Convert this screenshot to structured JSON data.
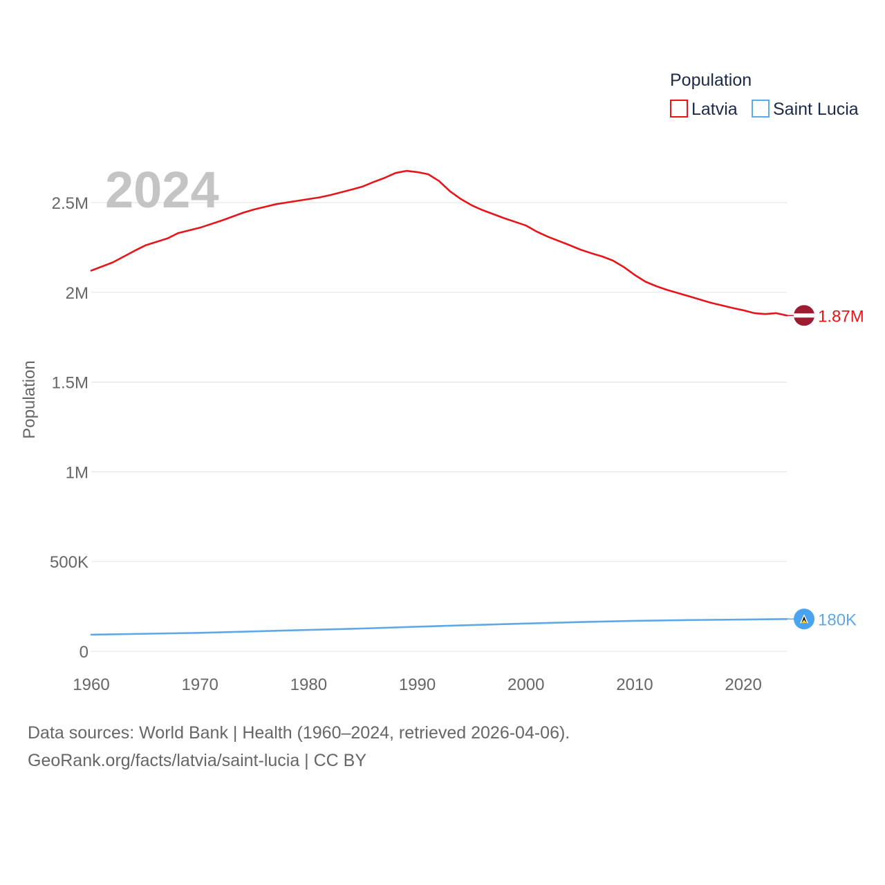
{
  "chart_data": {
    "type": "line",
    "title": "",
    "legend_title": "Population",
    "legend_position": "top-right",
    "year_label": "2024",
    "xlabel": "",
    "ylabel": "Population",
    "xlim": [
      1960,
      2024
    ],
    "ylim": [
      0,
      2500000
    ],
    "y_ticks": [
      {
        "value": 0,
        "label": "0"
      },
      {
        "value": 500000,
        "label": "500K"
      },
      {
        "value": 1000000,
        "label": "1M"
      },
      {
        "value": 1500000,
        "label": "1.5M"
      },
      {
        "value": 2000000,
        "label": "2M"
      },
      {
        "value": 2500000,
        "label": "2.5M"
      }
    ],
    "x_ticks": [
      1960,
      1970,
      1980,
      1990,
      2000,
      2010,
      2020
    ],
    "grid": true,
    "series": [
      {
        "name": "Latvia",
        "color": "#e8141a",
        "end_label": "1.87M",
        "flag": "latvia-flag",
        "x": [
          1960,
          1962,
          1964,
          1965,
          1967,
          1968,
          1970,
          1972,
          1974,
          1975,
          1977,
          1979,
          1981,
          1982,
          1984,
          1985,
          1986,
          1987,
          1988,
          1989,
          1990,
          1991,
          1992,
          1993,
          1994,
          1995,
          1996,
          1998,
          2000,
          2001,
          2002,
          2004,
          2005,
          2006,
          2007,
          2008,
          2009,
          2010,
          2011,
          2012,
          2013,
          2015,
          2017,
          2019,
          2020,
          2021,
          2022,
          2023,
          2024
        ],
        "values": [
          2121000,
          2167000,
          2232000,
          2262000,
          2300000,
          2330000,
          2360000,
          2400000,
          2444000,
          2462000,
          2491000,
          2510000,
          2529000,
          2542000,
          2573000,
          2590000,
          2615000,
          2638000,
          2665000,
          2677000,
          2670000,
          2658000,
          2620000,
          2563000,
          2520000,
          2485000,
          2458000,
          2413000,
          2372000,
          2338000,
          2310000,
          2263000,
          2238000,
          2218000,
          2200000,
          2177000,
          2141000,
          2097000,
          2059000,
          2034000,
          2013000,
          1978000,
          1942000,
          1913000,
          1900000,
          1884000,
          1879000,
          1884000,
          1871000
        ]
      },
      {
        "name": "Saint Lucia",
        "color": "#5fa8e8",
        "end_label": "180K",
        "flag": "saint-lucia-flag",
        "x": [
          1960,
          1970,
          1975,
          1980,
          1985,
          1990,
          1995,
          2000,
          2005,
          2010,
          2015,
          2020,
          2024
        ],
        "values": [
          93000,
          103000,
          111000,
          119000,
          127000,
          137000,
          146000,
          155000,
          163000,
          170000,
          174000,
          177000,
          180000
        ]
      }
    ]
  },
  "source": {
    "line1": "Data sources: World Bank | Health (1960–2024, retrieved 2026-04-06).",
    "line2": "GeoRank.org/facts/latvia/saint-lucia | CC BY"
  }
}
